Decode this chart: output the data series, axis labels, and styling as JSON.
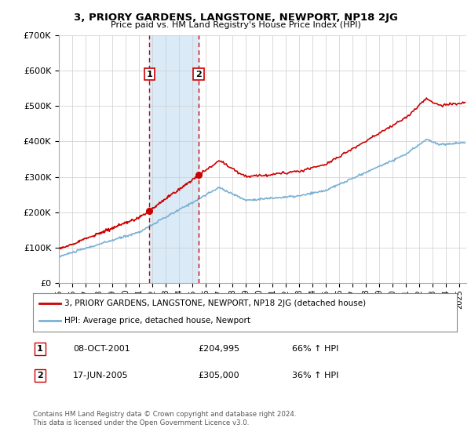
{
  "title": "3, PRIORY GARDENS, LANGSTONE, NEWPORT, NP18 2JG",
  "subtitle": "Price paid vs. HM Land Registry's House Price Index (HPI)",
  "ylabel_ticks": [
    "£0",
    "£100K",
    "£200K",
    "£300K",
    "£400K",
    "£500K",
    "£600K",
    "£700K"
  ],
  "ytick_values": [
    0,
    100000,
    200000,
    300000,
    400000,
    500000,
    600000,
    700000
  ],
  "ylim": [
    0,
    700000
  ],
  "xlim_start": 1995.0,
  "xlim_end": 2025.5,
  "sale1_year": 2001.77,
  "sale1_price": 204995,
  "sale2_year": 2005.46,
  "sale2_price": 305000,
  "sale1_label": "1",
  "sale2_label": "2",
  "sale1_date": "08-OCT-2001",
  "sale1_amount": "£204,995",
  "sale1_hpi": "66% ↑ HPI",
  "sale2_date": "17-JUN-2005",
  "sale2_amount": "£305,000",
  "sale2_hpi": "36% ↑ HPI",
  "legend_line1": "3, PRIORY GARDENS, LANGSTONE, NEWPORT, NP18 2JG (detached house)",
  "legend_line2": "HPI: Average price, detached house, Newport",
  "footer1": "Contains HM Land Registry data © Crown copyright and database right 2024.",
  "footer2": "This data is licensed under the Open Government Licence v3.0.",
  "red_color": "#cc0000",
  "blue_color": "#7ab0d4",
  "shade_color": "#daeaf7",
  "background_color": "#ffffff",
  "grid_color": "#cccccc"
}
